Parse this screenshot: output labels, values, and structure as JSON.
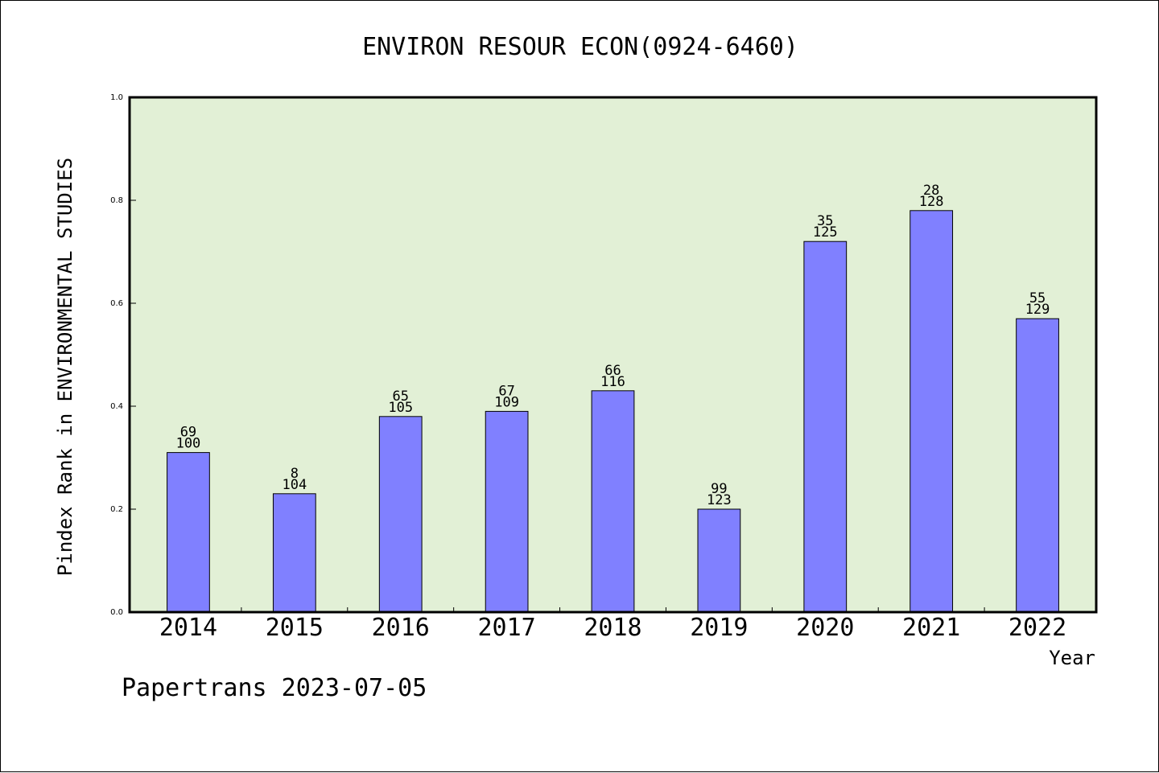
{
  "chart_data": {
    "type": "bar",
    "title": "ENVIRON RESOUR ECON(0924-6460)",
    "xlabel": "Year",
    "ylabel": "Pindex Rank in ENVIRONMENTAL STUDIES",
    "categories": [
      "2014",
      "2015",
      "2016",
      "2017",
      "2018",
      "2019",
      "2020",
      "2021",
      "2022"
    ],
    "values": [
      0.31,
      0.23,
      0.38,
      0.39,
      0.43,
      0.2,
      0.72,
      0.78,
      0.57
    ],
    "labels_top": [
      "69",
      "8",
      "65",
      "67",
      "66",
      "99",
      "35",
      "28",
      "55"
    ],
    "labels_bottom": [
      "100",
      "104",
      "105",
      "109",
      "116",
      "123",
      "125",
      "128",
      "129"
    ],
    "ylim": [
      0,
      1.0
    ],
    "yticks": [
      "0.0",
      "0.2",
      "0.4",
      "0.6",
      "0.8",
      "1.0"
    ],
    "grid": false,
    "colors": {
      "plot_background": "#e2f0d6",
      "bar": "#8080ff",
      "bar_edge": "#000000"
    }
  },
  "footer": "Papertrans 2023-07-05"
}
